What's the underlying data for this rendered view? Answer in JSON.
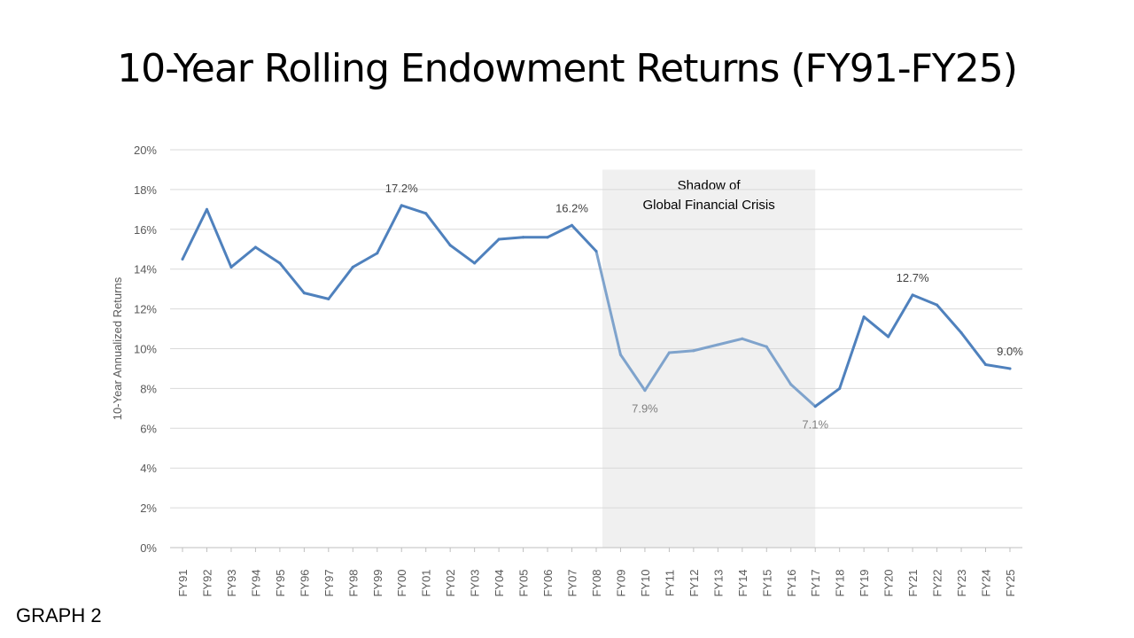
{
  "chart_data": {
    "type": "line",
    "title": "10-Year Rolling Endowment Returns (FY91-FY25)",
    "xlabel": "",
    "ylabel": "10-Year Annualized Returns",
    "ylim": [
      0,
      20
    ],
    "yticks": [
      "0%",
      "2%",
      "4%",
      "6%",
      "8%",
      "10%",
      "12%",
      "14%",
      "16%",
      "18%",
      "20%"
    ],
    "grid": true,
    "categories": [
      "FY91",
      "FY92",
      "FY93",
      "FY94",
      "FY95",
      "FY96",
      "FY97",
      "FY98",
      "FY99",
      "FY00",
      "FY01",
      "FY02",
      "FY03",
      "FY04",
      "FY05",
      "FY06",
      "FY07",
      "FY08",
      "FY09",
      "FY10",
      "FY11",
      "FY12",
      "FY13",
      "FY14",
      "FY15",
      "FY16",
      "FY17",
      "FY18",
      "FY19",
      "FY20",
      "FY21",
      "FY22",
      "FY23",
      "FY24",
      "FY25"
    ],
    "values": [
      14.5,
      17.0,
      14.1,
      15.1,
      14.3,
      12.8,
      12.5,
      14.1,
      14.8,
      17.2,
      16.8,
      15.2,
      14.3,
      15.5,
      15.6,
      15.6,
      16.2,
      14.9,
      9.7,
      7.9,
      9.8,
      9.9,
      10.2,
      10.5,
      10.1,
      8.2,
      7.1,
      8.0,
      11.6,
      10.6,
      12.7,
      12.2,
      10.8,
      9.2,
      9.0
    ],
    "data_labels": [
      {
        "category": "FY00",
        "text": "17.2%",
        "position": "above"
      },
      {
        "category": "FY07",
        "text": "16.2%",
        "position": "above"
      },
      {
        "category": "FY10",
        "text": "7.9%",
        "position": "below",
        "muted": true
      },
      {
        "category": "FY17",
        "text": "7.1%",
        "position": "below",
        "muted": true
      },
      {
        "category": "FY21",
        "text": "12.7%",
        "position": "above"
      },
      {
        "category": "FY25",
        "text": "9.0%",
        "position": "above"
      }
    ],
    "shaded_region": {
      "from": "FY08",
      "to": "FY17",
      "label_lines": [
        "Shadow of",
        "Global Financial Crisis"
      ],
      "color": "#f0f0f0"
    },
    "colors": {
      "line": "#4f81bd",
      "line_muted": "#7fa3cc",
      "grid": "#d9d9d9"
    }
  },
  "footer": "GRAPH 2"
}
